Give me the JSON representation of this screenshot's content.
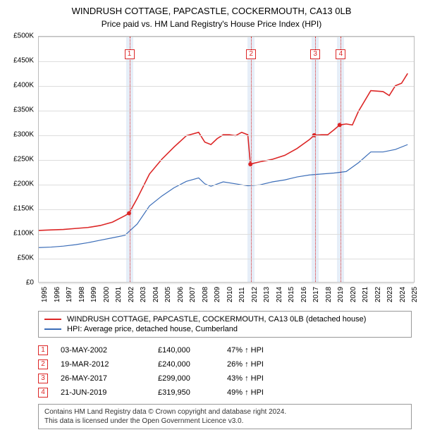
{
  "title": "WINDRUSH COTTAGE, PAPCASTLE, COCKERMOUTH, CA13 0LB",
  "subtitle": "Price paid vs. HM Land Registry's House Price Index (HPI)",
  "chart": {
    "type": "line",
    "background_color": "#ffffff",
    "grid_color": "#dddddd",
    "border_color": "#bbbbbb",
    "x_min": 1995,
    "x_max": 2025.5,
    "x_ticks": [
      1995,
      1996,
      1997,
      1998,
      1999,
      2000,
      2001,
      2002,
      2003,
      2004,
      2005,
      2006,
      2007,
      2008,
      2009,
      2010,
      2011,
      2012,
      2013,
      2014,
      2015,
      2016,
      2017,
      2018,
      2019,
      2020,
      2021,
      2022,
      2023,
      2024,
      2025
    ],
    "y_min": 0,
    "y_max": 500000,
    "y_ticks": [
      0,
      50000,
      100000,
      150000,
      200000,
      250000,
      300000,
      350000,
      400000,
      450000,
      500000
    ],
    "y_tick_labels": [
      "£0",
      "£50K",
      "£100K",
      "£150K",
      "£200K",
      "£250K",
      "£300K",
      "£350K",
      "£400K",
      "£450K",
      "£500K"
    ],
    "y_label_fontsize": 10,
    "x_label_fontsize": 10,
    "title_fontsize": 13,
    "sale_band_color": "#e6eef8",
    "sale_line_color": "#dc2626",
    "sale_marker_border": "#dc2626",
    "sales": [
      {
        "n": "1",
        "x": 2002.34,
        "date": "03-MAY-2002",
        "price_label": "£140,000",
        "price": 140000,
        "pct": "47% ↑ HPI"
      },
      {
        "n": "2",
        "x": 2012.21,
        "date": "19-MAR-2012",
        "price_label": "£240,000",
        "price": 240000,
        "pct": "26% ↑ HPI"
      },
      {
        "n": "3",
        "x": 2017.4,
        "date": "26-MAY-2017",
        "price_label": "£299,000",
        "price": 299000,
        "pct": "43% ↑ HPI"
      },
      {
        "n": "4",
        "x": 2019.47,
        "date": "21-JUN-2019",
        "price_label": "£319,950",
        "price": 319950,
        "pct": "49% ↑ HPI"
      }
    ],
    "series": [
      {
        "name": "WINDRUSH COTTAGE, PAPCASTLE, COCKERMOUTH, CA13 0LB (detached house)",
        "color": "#dc2626",
        "line_width": 1.6,
        "data": [
          [
            1995,
            105000
          ],
          [
            1996,
            106000
          ],
          [
            1997,
            107000
          ],
          [
            1998,
            109000
          ],
          [
            1999,
            111000
          ],
          [
            2000,
            115000
          ],
          [
            2001,
            122000
          ],
          [
            2002,
            135000
          ],
          [
            2002.34,
            140000
          ],
          [
            2003,
            170000
          ],
          [
            2004,
            220000
          ],
          [
            2005,
            250000
          ],
          [
            2006,
            275000
          ],
          [
            2007,
            298000
          ],
          [
            2008,
            305000
          ],
          [
            2008.5,
            285000
          ],
          [
            2009,
            280000
          ],
          [
            2009.5,
            292000
          ],
          [
            2010,
            300000
          ],
          [
            2010.5,
            300000
          ],
          [
            2011,
            298000
          ],
          [
            2011.5,
            305000
          ],
          [
            2012,
            300000
          ],
          [
            2012.21,
            240000
          ],
          [
            2012.5,
            242000
          ],
          [
            2013,
            245000
          ],
          [
            2014,
            250000
          ],
          [
            2015,
            258000
          ],
          [
            2016,
            272000
          ],
          [
            2017,
            290000
          ],
          [
            2017.4,
            299000
          ],
          [
            2018,
            300000
          ],
          [
            2018.5,
            300000
          ],
          [
            2019,
            310000
          ],
          [
            2019.47,
            319950
          ],
          [
            2020,
            322000
          ],
          [
            2020.5,
            320000
          ],
          [
            2021,
            348000
          ],
          [
            2022,
            390000
          ],
          [
            2023,
            388000
          ],
          [
            2023.5,
            380000
          ],
          [
            2024,
            400000
          ],
          [
            2024.5,
            405000
          ],
          [
            2025,
            425000
          ]
        ]
      },
      {
        "name": "HPI: Average price, detached house, Cumberland",
        "color": "#3b6db8",
        "line_width": 1.2,
        "data": [
          [
            1995,
            70000
          ],
          [
            1996,
            71000
          ],
          [
            1997,
            73000
          ],
          [
            1998,
            76000
          ],
          [
            1999,
            80000
          ],
          [
            2000,
            85000
          ],
          [
            2001,
            90000
          ],
          [
            2002,
            95000
          ],
          [
            2003,
            118000
          ],
          [
            2004,
            155000
          ],
          [
            2005,
            175000
          ],
          [
            2006,
            192000
          ],
          [
            2007,
            205000
          ],
          [
            2008,
            212000
          ],
          [
            2008.5,
            200000
          ],
          [
            2009,
            195000
          ],
          [
            2010,
            204000
          ],
          [
            2011,
            200000
          ],
          [
            2012,
            196000
          ],
          [
            2013,
            198000
          ],
          [
            2014,
            204000
          ],
          [
            2015,
            208000
          ],
          [
            2016,
            214000
          ],
          [
            2017,
            218000
          ],
          [
            2018,
            220000
          ],
          [
            2019,
            222000
          ],
          [
            2020,
            225000
          ],
          [
            2021,
            243000
          ],
          [
            2022,
            265000
          ],
          [
            2023,
            265000
          ],
          [
            2024,
            270000
          ],
          [
            2025,
            280000
          ]
        ]
      }
    ]
  },
  "legend": {
    "items": [
      {
        "color": "#dc2626",
        "label": "WINDRUSH COTTAGE, PAPCASTLE, COCKERMOUTH, CA13 0LB (detached house)"
      },
      {
        "color": "#3b6db8",
        "label": "HPI: Average price, detached house, Cumberland"
      }
    ]
  },
  "footer": {
    "line1": "Contains HM Land Registry data © Crown copyright and database right 2024.",
    "line2": "This data is licensed under the Open Government Licence v3.0."
  }
}
